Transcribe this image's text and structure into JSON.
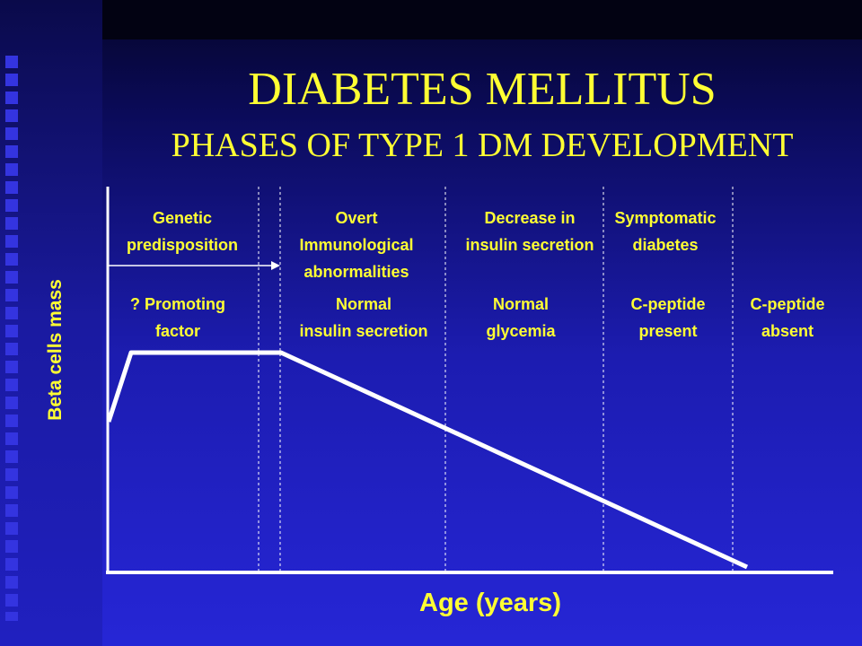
{
  "title": "DIABETES MELLITUS",
  "subtitle": "PHASES OF TYPE 1 DM DEVELOPMENT",
  "y_axis_label": "Beta cells mass",
  "x_axis_label": "Age (years)",
  "phases_top": [
    {
      "lines": [
        "Genetic",
        "predisposition"
      ]
    },
    {
      "lines": [
        "Overt",
        "Immunological",
        "abnormalities"
      ]
    },
    {
      "lines": [
        "Decrease in",
        "insulin secretion"
      ]
    },
    {
      "lines": [
        "Symptomatic",
        "diabetes"
      ]
    }
  ],
  "phases_bottom": [
    {
      "lines": [
        "? Promoting",
        "factor"
      ]
    },
    {
      "lines": [
        "Normal",
        "insulin secretion"
      ]
    },
    {
      "lines": [
        "Normal",
        "glycemia"
      ]
    },
    {
      "lines": [
        "C-peptide",
        "present"
      ]
    },
    {
      "lines": [
        "C-peptide",
        "absent"
      ]
    }
  ],
  "colors": {
    "text": "#ffff33",
    "line": "#ffffff",
    "background": "#1c1cb0"
  }
}
